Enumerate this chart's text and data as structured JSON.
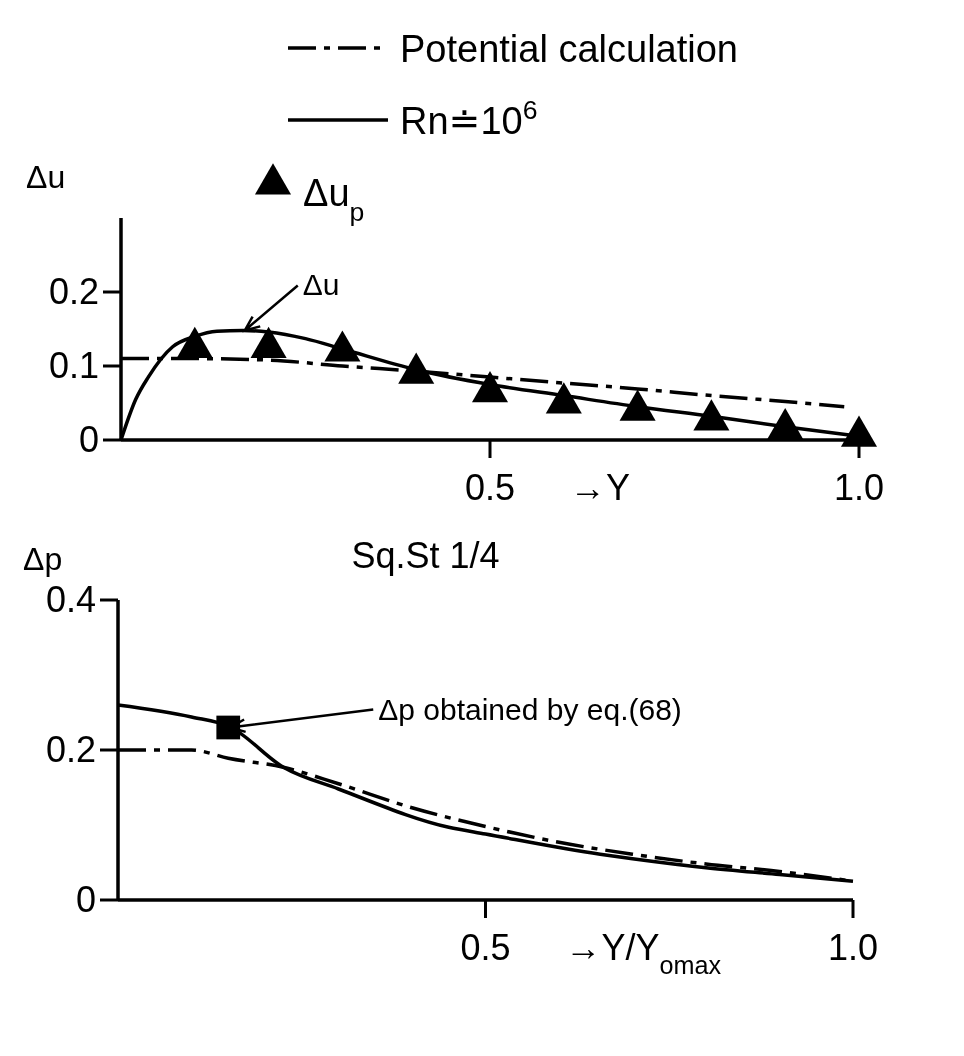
{
  "chart_data": [
    {
      "type": "line",
      "xlabel": "→Y",
      "ylabel": "Δu",
      "legend": "top",
      "xlim": [
        0,
        1
      ],
      "ylim": [
        0,
        0.3
      ],
      "xticks": [
        0.5,
        {
          "value": 1,
          "label": "1.0"
        }
      ],
      "yticks": [
        0,
        0.1,
        0.2
      ],
      "series": [
        {
          "name": "Potential calculation",
          "color": "#000000",
          "line_style": "dashed",
          "x": [
            0,
            0.1,
            0.2,
            0.3,
            0.4,
            0.5,
            0.6,
            0.7,
            0.8,
            0.9,
            0.98
          ],
          "values": [
            0.11,
            0.11,
            0.108,
            0.1,
            0.093,
            0.085,
            0.077,
            0.069,
            0.06,
            0.052,
            0.045
          ]
        },
        {
          "name": "Rn≐10$^{6}$",
          "color": "#000000",
          "line_style": "solid",
          "x": [
            0,
            0.02,
            0.037,
            0.07,
            0.1,
            0.13,
            0.165,
            0.2,
            0.25,
            0.3,
            0.4,
            0.5,
            0.6,
            0.7,
            0.8,
            0.9,
            1
          ],
          "values": [
            0,
            0.055,
            0.085,
            0.126,
            0.14,
            0.147,
            0.148,
            0.146,
            0.137,
            0.123,
            0.095,
            0.075,
            0.06,
            0.045,
            0.032,
            0.018,
            0.005
          ]
        },
        {
          "name": "Δu$_{p}$",
          "type": "scatter",
          "marker": "triangle",
          "color": "#000000",
          "x": [
            0.1,
            0.2,
            0.3,
            0.4,
            0.5,
            0.6,
            0.7,
            0.8,
            0.9,
            1
          ],
          "values": [
            0.125,
            0.125,
            0.12,
            0.09,
            0.065,
            0.05,
            0.04,
            0.027,
            0.015,
            0.005
          ]
        }
      ],
      "annotations": [
        {
          "text": "Δu",
          "x": 0.165,
          "y": 0.148
        }
      ]
    },
    {
      "type": "line",
      "title": "Sq.St 1/4",
      "xlabel": "→Y/Y$_{omax}$",
      "ylabel": "Δp",
      "xlim": [
        0,
        1
      ],
      "ylim": [
        0,
        0.4
      ],
      "xticks": [
        0.5,
        {
          "value": 1,
          "label": "1.0"
        }
      ],
      "yticks": [
        0,
        0.2,
        0.4
      ],
      "series": [
        {
          "color": "#000000",
          "line_style": "dashed",
          "x": [
            0,
            0.1,
            0.15,
            0.225,
            0.3,
            0.4,
            0.5,
            0.6,
            0.7,
            0.8,
            0.9,
            1
          ],
          "values": [
            0.2,
            0.2,
            0.189,
            0.177,
            0.155,
            0.123,
            0.098,
            0.077,
            0.061,
            0.048,
            0.038,
            0.025
          ]
        },
        {
          "color": "#000000",
          "line_style": "solid",
          "x": [
            0,
            0.1,
            0.152,
            0.225,
            0.3,
            0.45,
            0.5,
            0.656,
            0.7,
            0.8,
            0.9,
            1
          ],
          "values": [
            0.26,
            0.244,
            0.231,
            0.177,
            0.148,
            0.097,
            0.088,
            0.061,
            0.055,
            0.043,
            0.034,
            0.025
          ]
        },
        {
          "type": "scatter",
          "marker": "square",
          "color": "#000000",
          "x": [
            0.15
          ],
          "values": [
            0.23
          ]
        }
      ],
      "annotations": [
        {
          "text": "Δp obtained by eq.(68)",
          "x": 0.15,
          "y": 0.23
        }
      ]
    }
  ]
}
